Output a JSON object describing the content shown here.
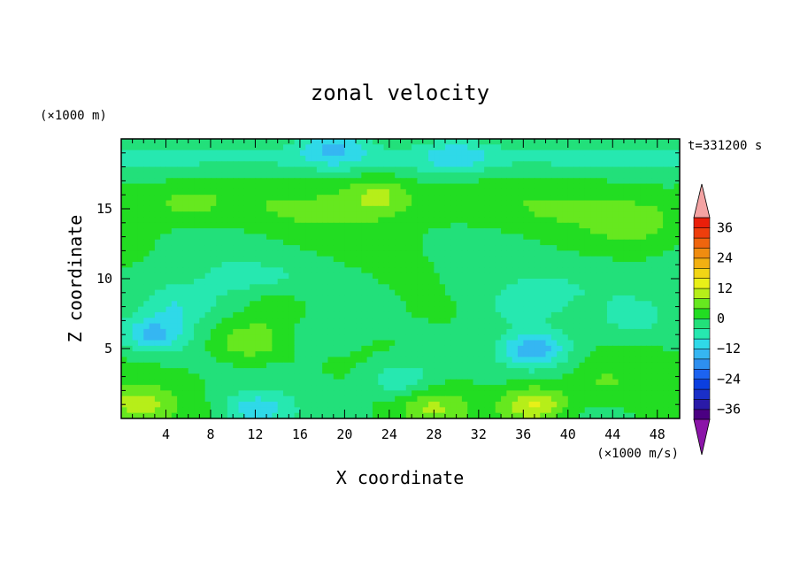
{
  "chart_data": {
    "type": "heatmap",
    "title": "zonal velocity",
    "xlabel": "X coordinate",
    "ylabel": "Z coordinate",
    "y_unit_label": "(×1000 m)",
    "x_unit_label": "(×1000 m/s)",
    "time_label": "t=331200 s",
    "xlim": [
      0,
      50
    ],
    "ylim": [
      0,
      20
    ],
    "x_ticks": [
      4,
      8,
      12,
      16,
      20,
      24,
      28,
      32,
      36,
      40,
      44,
      48
    ],
    "y_ticks": [
      5,
      10,
      15
    ],
    "colorbar": {
      "levels": [
        -40,
        -36,
        -32,
        -28,
        -24,
        -20,
        -16,
        -12,
        -8,
        -4,
        0,
        4,
        8,
        12,
        16,
        20,
        24,
        28,
        32,
        36,
        40
      ],
      "labels": [
        -36,
        -24,
        -12,
        0,
        12,
        24,
        36
      ],
      "colors": [
        "#4b0082",
        "#2a1aa8",
        "#1a2fc8",
        "#0b3fe0",
        "#1c63f0",
        "#2d8ff0",
        "#35b6f2",
        "#2fd9e8",
        "#26e8b0",
        "#22e07a",
        "#22dd22",
        "#66e81f",
        "#b6ee19",
        "#e8f018",
        "#f2d515",
        "#f2b012",
        "#f08c10",
        "#ef650e",
        "#ee3e0c",
        "#ea1f0a"
      ],
      "under_color": "#8b14a8",
      "over_color": "#f4a3a3"
    },
    "field": {
      "background_value": 0,
      "features": [
        {
          "x": 37,
          "z": 5,
          "value": -15
        },
        {
          "x": 3,
          "z": 6,
          "value": -13
        },
        {
          "x": 12,
          "z": 0.6,
          "value": -10
        },
        {
          "x": 25,
          "z": 2.8,
          "value": -9
        },
        {
          "x": 19,
          "z": 19.5,
          "value": -10
        },
        {
          "x": 30,
          "z": 18.8,
          "value": -7
        },
        {
          "x": 5,
          "z": 8,
          "value": -6
        },
        {
          "x": 36,
          "z": 8,
          "value": -6
        },
        {
          "x": 46,
          "z": 7,
          "value": -5
        },
        {
          "x": 18,
          "z": 6,
          "value": -4
        },
        {
          "x": 37,
          "z": 1,
          "value": 14
        },
        {
          "x": 1.5,
          "z": 1,
          "value": 9
        },
        {
          "x": 23,
          "z": 16,
          "value": 8
        },
        {
          "x": 11.5,
          "z": 5.5,
          "value": 8
        },
        {
          "x": 14,
          "z": 8,
          "value": 6
        },
        {
          "x": 28,
          "z": 0.8,
          "value": 7
        },
        {
          "x": 46,
          "z": 14,
          "value": 5
        },
        {
          "x": 6,
          "z": 15.5,
          "value": 4
        },
        {
          "x": 43,
          "z": 2.5,
          "value": 4
        }
      ]
    }
  }
}
